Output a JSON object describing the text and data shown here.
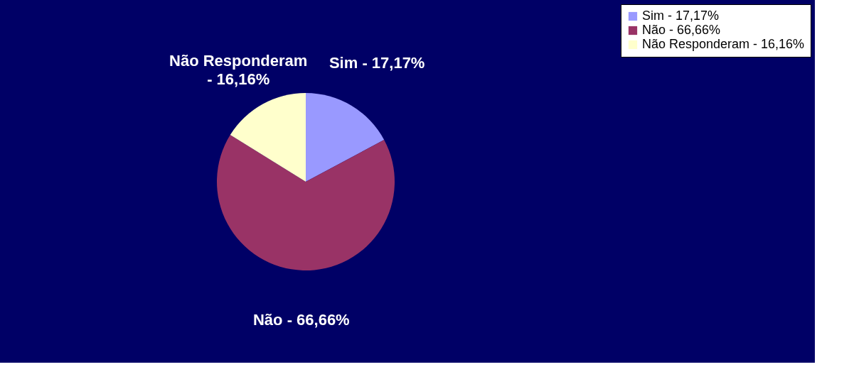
{
  "chart_data": {
    "type": "pie",
    "categories": [
      "Sim - 17,17%",
      "Não - 66,66%",
      "Não Responderam - 16,16%"
    ],
    "values": [
      17.17,
      66.66,
      16.16
    ],
    "colors": [
      "#9999ff",
      "#993366",
      "#ffffcc"
    ],
    "legend": "right"
  }
}
